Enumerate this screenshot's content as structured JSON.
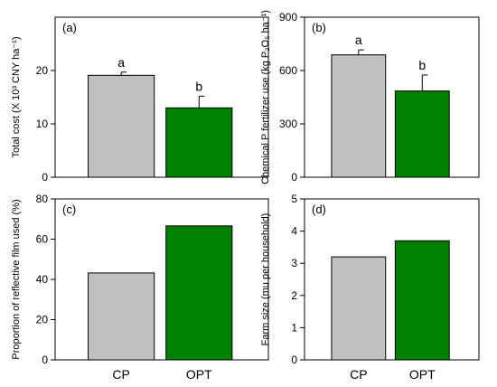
{
  "colors": {
    "CP": "#c0c0c0",
    "OPT": "#008000",
    "edge": "#000000"
  },
  "chart_data": [
    {
      "id": "a",
      "type": "bar",
      "panel_label": "(a)",
      "categories": [
        "CP",
        "OPT"
      ],
      "values": [
        19.1,
        13.0
      ],
      "errors": [
        0.6,
        2.2
      ],
      "sig_labels": [
        "a",
        "b"
      ],
      "ylabel": "Total cost (X 10³ CNY ha⁻¹)",
      "ylim": [
        0,
        30
      ],
      "yticks": [
        0,
        10,
        20
      ],
      "ytick_labels": [
        "0",
        "10",
        "20"
      ]
    },
    {
      "id": "b",
      "type": "bar",
      "panel_label": "(b)",
      "categories": [
        "CP",
        "OPT"
      ],
      "values": [
        688,
        485
      ],
      "errors": [
        28,
        90
      ],
      "sig_labels": [
        "a",
        "b"
      ],
      "ylabel": "Chemical P fertilizer use (kg P₂O₅ ha⁻¹)",
      "ylim": [
        0,
        900
      ],
      "yticks": [
        0,
        300,
        600,
        900
      ],
      "ytick_labels": [
        "0",
        "300",
        "600",
        "900"
      ]
    },
    {
      "id": "c",
      "type": "bar",
      "panel_label": "(c)",
      "categories": [
        "CP",
        "OPT"
      ],
      "values": [
        43.2,
        66.6
      ],
      "ylabel": "Proportion of reflective film used (%)",
      "ylim": [
        0,
        80
      ],
      "yticks": [
        0,
        20,
        40,
        60,
        80
      ],
      "ytick_labels": [
        "0",
        "20",
        "40",
        "60",
        "80"
      ]
    },
    {
      "id": "d",
      "type": "bar",
      "panel_label": "(d)",
      "categories": [
        "CP",
        "OPT"
      ],
      "values": [
        3.2,
        3.7
      ],
      "ylabel": "Farm size (mu per household)",
      "ylim": [
        0,
        5
      ],
      "yticks": [
        0,
        1,
        2,
        3,
        4,
        5
      ],
      "ytick_labels": [
        "0",
        "1",
        "2",
        "3",
        "4",
        "5"
      ]
    }
  ]
}
